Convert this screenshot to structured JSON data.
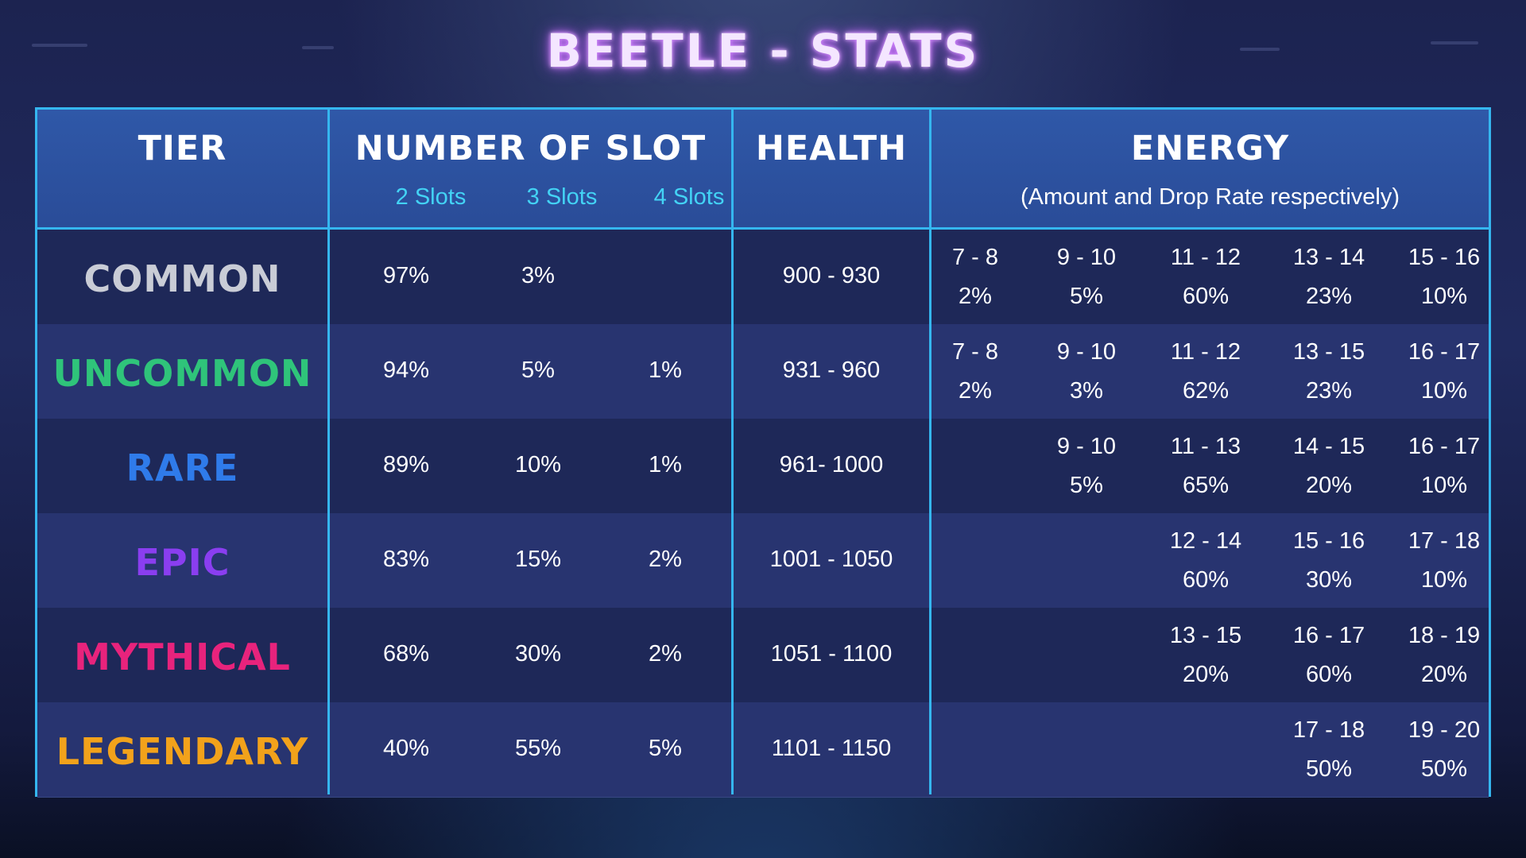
{
  "title": "BEETLE - STATS",
  "headers": {
    "tier": "TIER",
    "slots": "NUMBER OF SLOT",
    "slot_labels": [
      "2 Slots",
      "3 Slots",
      "4 Slots"
    ],
    "health": "HEALTH",
    "energy": "ENERGY",
    "energy_note": "(Amount and Drop Rate respectively)"
  },
  "tier_colors": {
    "common": "#c9ccd6",
    "uncommon": "#2fc47a",
    "rare": "#2f7bea",
    "epic": "#8a3ef0",
    "mythical": "#e8237c",
    "legendary": "#f2a21b"
  },
  "rows": [
    {
      "tier": "COMMON",
      "slots": [
        "97%",
        "3%",
        ""
      ],
      "health": "900 - 930",
      "energy": [
        {
          "range": "7 - 8",
          "rate": "2%"
        },
        {
          "range": "9 - 10",
          "rate": "5%"
        },
        {
          "range": "11 - 12",
          "rate": "60%"
        },
        {
          "range": "13 - 14",
          "rate": "23%"
        },
        {
          "range": "15 - 16",
          "rate": "10%"
        }
      ]
    },
    {
      "tier": "UNCOMMON",
      "slots": [
        "94%",
        "5%",
        "1%"
      ],
      "health": "931 - 960",
      "energy": [
        {
          "range": "7 - 8",
          "rate": "2%"
        },
        {
          "range": "9 - 10",
          "rate": "3%"
        },
        {
          "range": "11 - 12",
          "rate": "62%"
        },
        {
          "range": "13 - 15",
          "rate": "23%"
        },
        {
          "range": "16 - 17",
          "rate": "10%"
        }
      ]
    },
    {
      "tier": "RARE",
      "slots": [
        "89%",
        "10%",
        "1%"
      ],
      "health": "961- 1000",
      "energy": [
        {
          "range": "",
          "rate": ""
        },
        {
          "range": "9 - 10",
          "rate": "5%"
        },
        {
          "range": "11 - 13",
          "rate": "65%"
        },
        {
          "range": "14 - 15",
          "rate": "20%"
        },
        {
          "range": "16 - 17",
          "rate": "10%"
        }
      ]
    },
    {
      "tier": "EPIC",
      "slots": [
        "83%",
        "15%",
        "2%"
      ],
      "health": "1001 - 1050",
      "energy": [
        {
          "range": "",
          "rate": ""
        },
        {
          "range": "",
          "rate": ""
        },
        {
          "range": "12 - 14",
          "rate": "60%"
        },
        {
          "range": "15 - 16",
          "rate": "30%"
        },
        {
          "range": "17 - 18",
          "rate": "10%"
        }
      ]
    },
    {
      "tier": "MYTHICAL",
      "slots": [
        "68%",
        "30%",
        "2%"
      ],
      "health": "1051 - 1100",
      "energy": [
        {
          "range": "",
          "rate": ""
        },
        {
          "range": "",
          "rate": ""
        },
        {
          "range": "13 - 15",
          "rate": "20%"
        },
        {
          "range": "16 - 17",
          "rate": "60%"
        },
        {
          "range": "18 - 19",
          "rate": "20%"
        }
      ]
    },
    {
      "tier": "LEGENDARY",
      "slots": [
        "40%",
        "55%",
        "5%"
      ],
      "health": "1101 - 1150",
      "energy": [
        {
          "range": "",
          "rate": ""
        },
        {
          "range": "",
          "rate": ""
        },
        {
          "range": "",
          "rate": ""
        },
        {
          "range": "17 - 18",
          "rate": "50%"
        },
        {
          "range": "19 - 20",
          "rate": "50%"
        }
      ]
    }
  ]
}
